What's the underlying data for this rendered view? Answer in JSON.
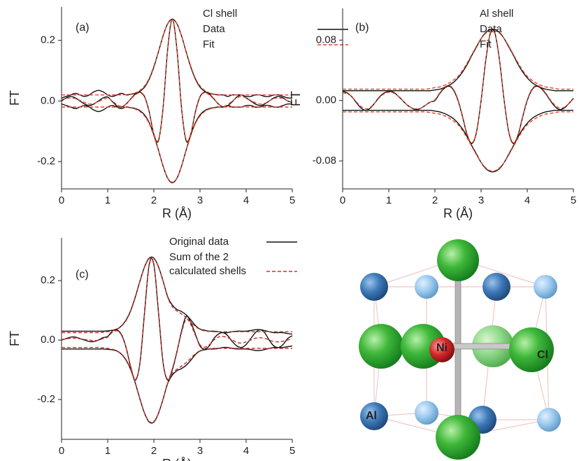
{
  "chart_data": [
    {
      "type": "line",
      "panel_label": "(a)",
      "legend_title": "Cl shell",
      "x_label": "R (Å)",
      "y_label": "FT",
      "xlim": [
        0,
        5
      ],
      "xticks": [
        0,
        1,
        2,
        3,
        4,
        5
      ],
      "ylim": [
        -0.29,
        0.31
      ],
      "yticks": [
        -0.2,
        {
          "value": 0,
          "label": "0.0"
        },
        0.2
      ],
      "x": [
        0,
        0.1,
        0.2,
        0.3,
        0.4,
        0.5,
        0.6,
        0.7,
        0.8,
        0.9,
        1,
        1.1,
        1.2,
        1.3,
        1.4,
        1.5,
        1.6,
        1.7,
        1.8,
        1.9,
        2,
        2.1,
        2.2,
        2.3,
        2.4,
        2.5,
        2.6,
        2.7,
        2.8,
        2.9,
        3,
        3.1,
        3.2,
        3.3,
        3.4,
        3.5,
        3.6,
        3.7,
        3.8,
        3.9,
        4,
        4.1,
        4.2,
        4.3,
        4.4,
        4.5,
        4.6,
        4.7,
        4.8,
        4.9,
        5
      ],
      "series": [
        {
          "name": "Data",
          "color": "#111111",
          "dashed": false,
          "envelope": [
            0.01,
            0.015,
            0.02,
            0.025,
            0.02,
            0.015,
            0.02,
            0.03,
            0.035,
            0.03,
            0.02,
            0.015,
            0.02,
            0.025,
            0.02,
            0.022,
            0.025,
            0.032,
            0.046,
            0.072,
            0.112,
            0.162,
            0.215,
            0.255,
            0.27,
            0.255,
            0.215,
            0.162,
            0.112,
            0.072,
            0.046,
            0.032,
            0.025,
            0.022,
            0.02,
            0.02,
            0.015,
            0.02,
            0.02,
            0.02,
            0.015,
            0.015,
            0.02,
            0.02,
            0.015,
            0.015,
            0.02,
            0.02,
            0.015,
            0.01,
            0.01
          ],
          "values": [
            0,
            0.01,
            0.015,
            0.01,
            0,
            -0.01,
            -0.015,
            -0.01,
            0,
            0.01,
            0.013,
            -0.002,
            -0.016,
            -0.02,
            -0.01,
            0.007,
            0.023,
            0.029,
            0.014,
            -0.036,
            -0.11,
            -0.131,
            -0.023,
            0.171,
            0.27,
            0.171,
            -0.023,
            -0.131,
            -0.11,
            -0.036,
            0.014,
            0.029,
            0.023,
            0.007,
            -0.01,
            -0.02,
            -0.016,
            -0.002,
            0.013,
            0.02,
            0.01,
            0,
            -0.01,
            -0.015,
            -0.01,
            0,
            0.01,
            0.015,
            0.01,
            0,
            -0.005
          ]
        },
        {
          "name": "Fit",
          "color": "#e0452b",
          "dashed": true,
          "envelope": [
            0.02,
            0.02,
            0.02,
            0.02,
            0.02,
            0.02,
            0.02,
            0.02,
            0.02,
            0.02,
            0.02,
            0.02,
            0.02,
            0.02,
            0.021,
            0.023,
            0.027,
            0.035,
            0.05,
            0.075,
            0.115,
            0.163,
            0.214,
            0.254,
            0.268,
            0.254,
            0.214,
            0.163,
            0.115,
            0.075,
            0.05,
            0.035,
            0.027,
            0.023,
            0.021,
            0.02,
            0.02,
            0.02,
            0.02,
            0.02,
            0.02,
            0.02,
            0.02,
            0.02,
            0.02,
            0.02,
            0.02,
            0.02,
            0.02,
            0.02,
            0.02
          ],
          "values": [
            0.005,
            0.008,
            0.01,
            0.008,
            0.002,
            -0.005,
            -0.01,
            -0.008,
            -0.002,
            0.005,
            0.01,
            0,
            -0.012,
            -0.018,
            -0.01,
            0.006,
            0.02,
            0.027,
            0.012,
            -0.038,
            -0.108,
            -0.128,
            -0.022,
            0.17,
            0.268,
            0.17,
            -0.022,
            -0.128,
            -0.108,
            -0.038,
            0.012,
            0.027,
            0.02,
            0.006,
            -0.01,
            -0.018,
            -0.012,
            0,
            0.01,
            0.015,
            0.01,
            0.002,
            -0.006,
            -0.01,
            -0.008,
            0,
            0.008,
            0.01,
            0.008,
            0,
            -0.004
          ]
        }
      ]
    },
    {
      "type": "line",
      "panel_label": "(b)",
      "legend_title": "Al shell",
      "x_label": "R (Å)",
      "y_label": "FT",
      "xlim": [
        0,
        5
      ],
      "xticks": [
        0,
        1,
        2,
        3,
        4,
        5
      ],
      "ylim": [
        -0.117,
        0.122
      ],
      "yticks": [
        -0.08,
        {
          "value": 0,
          "label": "0.00"
        },
        0.08
      ],
      "x": [
        0,
        0.1,
        0.2,
        0.3,
        0.4,
        0.5,
        0.6,
        0.7,
        0.8,
        0.9,
        1,
        1.1,
        1.2,
        1.3,
        1.4,
        1.5,
        1.6,
        1.7,
        1.8,
        1.9,
        2,
        2.1,
        2.2,
        2.3,
        2.4,
        2.5,
        2.6,
        2.7,
        2.8,
        2.9,
        3,
        3.1,
        3.2,
        3.3,
        3.4,
        3.5,
        3.6,
        3.7,
        3.8,
        3.9,
        4,
        4.1,
        4.2,
        4.3,
        4.4,
        4.5,
        4.6,
        4.7,
        4.8,
        4.9,
        5
      ],
      "series": [
        {
          "name": "Data",
          "color": "#111111",
          "dashed": false,
          "envelope": [
            0.013,
            0.013,
            0.013,
            0.013,
            0.013,
            0.013,
            0.013,
            0.013,
            0.013,
            0.013,
            0.013,
            0.013,
            0.013,
            0.013,
            0.013,
            0.013,
            0.013,
            0.013,
            0.013,
            0.013,
            0.014,
            0.015,
            0.017,
            0.02,
            0.024,
            0.03,
            0.038,
            0.048,
            0.06,
            0.071,
            0.082,
            0.09,
            0.094,
            0.094,
            0.09,
            0.082,
            0.071,
            0.06,
            0.048,
            0.038,
            0.03,
            0.024,
            0.02,
            0.017,
            0.015,
            0.014,
            0.013,
            0.013,
            0.013,
            0.013,
            0.013
          ],
          "values": [
            0.012,
            0.01,
            0.005,
            -0.003,
            -0.01,
            -0.013,
            -0.01,
            -0.003,
            0.005,
            0.01,
            0.012,
            0.011,
            0.006,
            0,
            -0.006,
            -0.01,
            -0.012,
            -0.01,
            -0.006,
            -0.002,
            0,
            0.009,
            0.016,
            0.019,
            0.014,
            0,
            -0.022,
            -0.046,
            -0.057,
            -0.042,
            0,
            0.053,
            0.089,
            0.089,
            0.053,
            0,
            -0.042,
            -0.057,
            -0.046,
            -0.022,
            0,
            0.014,
            0.019,
            0.016,
            0.009,
            0,
            -0.008,
            -0.012,
            -0.01,
            -0.004,
            0.003
          ]
        },
        {
          "name": "Fit",
          "color": "#e0452b",
          "dashed": true,
          "envelope": [
            0.015,
            0.015,
            0.015,
            0.015,
            0.015,
            0.015,
            0.015,
            0.015,
            0.015,
            0.015,
            0.015,
            0.015,
            0.015,
            0.015,
            0.015,
            0.015,
            0.015,
            0.015,
            0.015,
            0.016,
            0.017,
            0.018,
            0.02,
            0.023,
            0.027,
            0.032,
            0.04,
            0.05,
            0.061,
            0.072,
            0.082,
            0.089,
            0.093,
            0.093,
            0.089,
            0.082,
            0.072,
            0.061,
            0.05,
            0.04,
            0.032,
            0.027,
            0.023,
            0.02,
            0.018,
            0.017,
            0.016,
            0.015,
            0.015,
            0.015,
            0.015
          ],
          "values": [
            0.01,
            0.009,
            0.005,
            -0.002,
            -0.008,
            -0.011,
            -0.009,
            -0.003,
            0.004,
            0.009,
            0.011,
            0.01,
            0.006,
            0,
            -0.006,
            -0.01,
            -0.011,
            -0.01,
            -0.006,
            -0.002,
            0.001,
            0.01,
            0.017,
            0.02,
            0.015,
            0.001,
            -0.021,
            -0.045,
            -0.056,
            -0.041,
            0,
            0.052,
            0.088,
            0.088,
            0.052,
            0,
            -0.041,
            -0.056,
            -0.045,
            -0.021,
            0.001,
            0.015,
            0.02,
            0.017,
            0.01,
            0.001,
            -0.006,
            -0.01,
            -0.009,
            -0.004,
            0.002
          ]
        }
      ]
    },
    {
      "type": "line",
      "panel_label": "(c)",
      "x_label": "R (Å)",
      "y_label": "FT",
      "xlim": [
        0,
        5
      ],
      "xticks": [
        0,
        1,
        2,
        3,
        4,
        5
      ],
      "ylim": [
        -0.334,
        0.344
      ],
      "yticks": [
        -0.2,
        {
          "value": 0,
          "label": "0.0"
        },
        0.2
      ],
      "x": [
        0,
        0.1,
        0.2,
        0.3,
        0.4,
        0.5,
        0.6,
        0.7,
        0.8,
        0.9,
        1,
        1.1,
        1.2,
        1.3,
        1.4,
        1.5,
        1.6,
        1.7,
        1.8,
        1.9,
        2,
        2.1,
        2.2,
        2.3,
        2.4,
        2.5,
        2.6,
        2.7,
        2.8,
        2.9,
        3,
        3.1,
        3.2,
        3.3,
        3.4,
        3.5,
        3.6,
        3.7,
        3.8,
        3.9,
        4,
        4.1,
        4.2,
        4.3,
        4.4,
        4.5,
        4.6,
        4.7,
        4.8,
        4.9,
        5
      ],
      "series": [
        {
          "name": "Original data",
          "color": "#111111",
          "dashed": false,
          "envelope": [
            0.03,
            0.03,
            0.03,
            0.03,
            0.03,
            0.03,
            0.03,
            0.03,
            0.03,
            0.03,
            0.031,
            0.033,
            0.037,
            0.048,
            0.068,
            0.1,
            0.146,
            0.199,
            0.247,
            0.276,
            0.276,
            0.247,
            0.199,
            0.146,
            0.118,
            0.103,
            0.096,
            0.085,
            0.068,
            0.049,
            0.037,
            0.033,
            0.03,
            0.03,
            0.028,
            0.025,
            0.025,
            0.028,
            0.03,
            0.03,
            0.03,
            0.032,
            0.035,
            0.035,
            0.032,
            0.028,
            0.025,
            0.025,
            0.025,
            0.022,
            0.02
          ],
          "values": [
            0,
            0.005,
            0.01,
            0.01,
            0.005,
            0,
            -0.005,
            -0.005,
            0,
            0.008,
            0.012,
            0.03,
            0.034,
            0.018,
            -0.026,
            -0.092,
            -0.135,
            -0.076,
            0.095,
            0.255,
            0.255,
            0.095,
            -0.076,
            -0.135,
            -0.1,
            -0.04,
            0.03,
            0.08,
            0.06,
            0.02,
            -0.02,
            -0.03,
            -0.02,
            0.005,
            0.02,
            0.025,
            0.015,
            -0.005,
            -0.02,
            -0.025,
            -0.015,
            0.005,
            0.025,
            0.035,
            0.025,
            0,
            -0.02,
            -0.025,
            -0.015,
            0.005,
            0.015
          ]
        },
        {
          "name": "Sum of the 2 calculated shells",
          "color": "#c8302a",
          "dashed": true,
          "envelope": [
            0.025,
            0.025,
            0.025,
            0.025,
            0.025,
            0.025,
            0.025,
            0.025,
            0.025,
            0.026,
            0.028,
            0.031,
            0.036,
            0.047,
            0.066,
            0.098,
            0.144,
            0.198,
            0.246,
            0.274,
            0.274,
            0.246,
            0.198,
            0.144,
            0.112,
            0.098,
            0.088,
            0.076,
            0.061,
            0.046,
            0.036,
            0.031,
            0.029,
            0.028,
            0.028,
            0.028,
            0.028,
            0.028,
            0.028,
            0.028,
            0.028,
            0.028,
            0.028,
            0.028,
            0.028,
            0.028,
            0.028,
            0.028,
            0.028,
            0.028,
            0.028
          ],
          "values": [
            0.002,
            0.004,
            0.006,
            0.006,
            0.004,
            0.002,
            0,
            -0.002,
            0,
            0.005,
            0.01,
            0.026,
            0.031,
            0.016,
            -0.026,
            -0.09,
            -0.132,
            -0.075,
            0.094,
            0.252,
            0.252,
            0.094,
            -0.075,
            -0.132,
            -0.096,
            -0.038,
            0.025,
            0.07,
            0.052,
            0.016,
            -0.016,
            -0.024,
            -0.016,
            0,
            0.01,
            0.012,
            0.008,
            0,
            -0.008,
            -0.01,
            -0.006,
            0,
            0.006,
            0.008,
            0.006,
            0,
            -0.005,
            -0.006,
            -0.004,
            0,
            0.004
          ]
        }
      ]
    }
  ],
  "diagram": {
    "labels": {
      "center": "Ni",
      "halide": "Cl",
      "metal": "Al"
    }
  }
}
